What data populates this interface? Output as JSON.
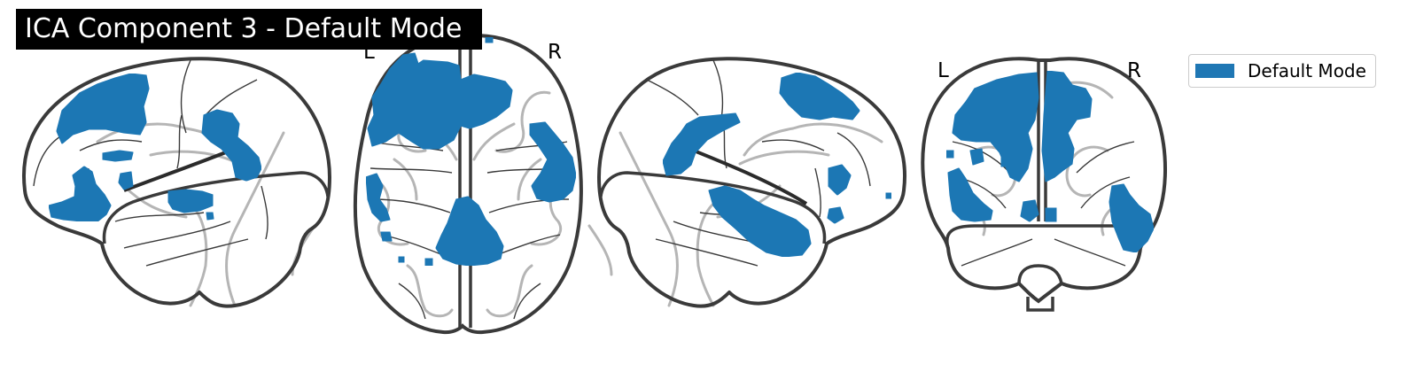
{
  "title": "ICA Component 3 - Default Mode",
  "views": {
    "axial": {
      "left_label": "L",
      "right_label": "R"
    },
    "coronal": {
      "left_label": "L",
      "right_label": "R"
    }
  },
  "legend": {
    "label": "Default Mode"
  },
  "colors": {
    "activation": "#1f77b4",
    "brain_outline": "#3a3a3a",
    "sulci": "#b5b5b5",
    "background": "#ffffff",
    "title_bg": "#000000",
    "title_text": "#ffffff"
  }
}
